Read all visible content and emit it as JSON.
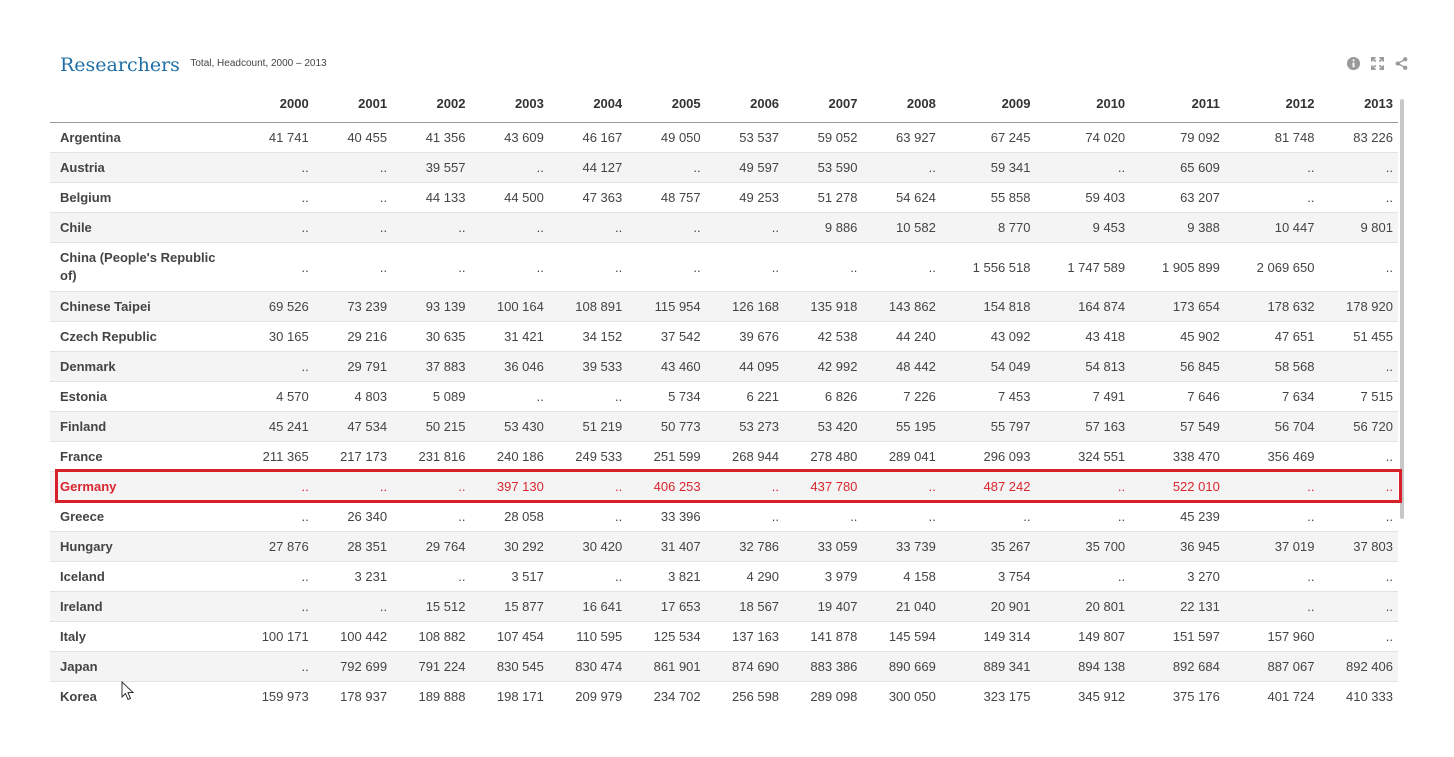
{
  "header": {
    "title": "Researchers",
    "subtitle": "Total, Headcount, 2000 – 2013"
  },
  "tools": [
    {
      "icon": "info-icon"
    },
    {
      "icon": "expand-icon"
    },
    {
      "icon": "share-icon"
    }
  ],
  "colors": {
    "title": "#1f6fa6",
    "highlight": "#d9262e",
    "row_alt": "#f4f4f4"
  },
  "table": {
    "columns": [
      "",
      "2000",
      "2001",
      "2002",
      "2003",
      "2004",
      "2005",
      "2006",
      "2007",
      "2008",
      "2009",
      "2010",
      "2011",
      "2012",
      "2013"
    ],
    "rows": [
      {
        "name": "Argentina",
        "values": [
          "41 741",
          "40 455",
          "41 356",
          "43 609",
          "46 167",
          "49 050",
          "53 537",
          "59 052",
          "63 927",
          "67 245",
          "74 020",
          "79 092",
          "81 748",
          "83 226"
        ]
      },
      {
        "name": "Austria",
        "values": [
          "..",
          "..",
          "39 557",
          "..",
          "44 127",
          "..",
          "49 597",
          "53 590",
          "..",
          "59 341",
          "..",
          "65 609",
          "..",
          ".."
        ]
      },
      {
        "name": "Belgium",
        "values": [
          "..",
          "..",
          "44 133",
          "44 500",
          "47 363",
          "48 757",
          "49 253",
          "51 278",
          "54 624",
          "55 858",
          "59 403",
          "63 207",
          "..",
          ".."
        ]
      },
      {
        "name": "Chile",
        "values": [
          "..",
          "..",
          "..",
          "..",
          "..",
          "..",
          "..",
          "9 886",
          "10 582",
          "8 770",
          "9 453",
          "9 388",
          "10 447",
          "9 801"
        ]
      },
      {
        "name": "China (People's Republic of)",
        "values": [
          "..",
          "..",
          "..",
          "..",
          "..",
          "..",
          "..",
          "..",
          "..",
          "1 556 518",
          "1 747 589",
          "1 905 899",
          "2 069 650",
          ".."
        ]
      },
      {
        "name": "Chinese Taipei",
        "values": [
          "69 526",
          "73 239",
          "93 139",
          "100 164",
          "108 891",
          "115 954",
          "126 168",
          "135 918",
          "143 862",
          "154 818",
          "164 874",
          "173 654",
          "178 632",
          "178 920"
        ]
      },
      {
        "name": "Czech Republic",
        "values": [
          "30 165",
          "29 216",
          "30 635",
          "31 421",
          "34 152",
          "37 542",
          "39 676",
          "42 538",
          "44 240",
          "43 092",
          "43 418",
          "45 902",
          "47 651",
          "51 455"
        ]
      },
      {
        "name": "Denmark",
        "values": [
          "..",
          "29 791",
          "37 883",
          "36 046",
          "39 533",
          "43 460",
          "44 095",
          "42 992",
          "48 442",
          "54 049",
          "54 813",
          "56 845",
          "58 568",
          ".."
        ]
      },
      {
        "name": "Estonia",
        "values": [
          "4 570",
          "4 803",
          "5 089",
          "..",
          "..",
          "5 734",
          "6 221",
          "6 826",
          "7 226",
          "7 453",
          "7 491",
          "7 646",
          "7 634",
          "7 515"
        ]
      },
      {
        "name": "Finland",
        "values": [
          "45 241",
          "47 534",
          "50 215",
          "53 430",
          "51 219",
          "50 773",
          "53 273",
          "53 420",
          "55 195",
          "55 797",
          "57 163",
          "57 549",
          "56 704",
          "56 720"
        ]
      },
      {
        "name": "France",
        "values": [
          "211 365",
          "217 173",
          "231 816",
          "240 186",
          "249 533",
          "251 599",
          "268 944",
          "278 480",
          "289 041",
          "296 093",
          "324 551",
          "338 470",
          "356 469",
          ".."
        ]
      },
      {
        "name": "Germany",
        "values": [
          "..",
          "..",
          "..",
          "397 130",
          "..",
          "406 253",
          "..",
          "437 780",
          "..",
          "487 242",
          "..",
          "522 010",
          "..",
          ".."
        ],
        "highlight": true
      },
      {
        "name": "Greece",
        "values": [
          "..",
          "26 340",
          "..",
          "28 058",
          "..",
          "33 396",
          "..",
          "..",
          "..",
          "..",
          "..",
          "45 239",
          "..",
          ".."
        ]
      },
      {
        "name": "Hungary",
        "values": [
          "27 876",
          "28 351",
          "29 764",
          "30 292",
          "30 420",
          "31 407",
          "32 786",
          "33 059",
          "33 739",
          "35 267",
          "35 700",
          "36 945",
          "37 019",
          "37 803"
        ]
      },
      {
        "name": "Iceland",
        "values": [
          "..",
          "3 231",
          "..",
          "3 517",
          "..",
          "3 821",
          "4 290",
          "3 979",
          "4 158",
          "3 754",
          "..",
          "3 270",
          "..",
          ".."
        ]
      },
      {
        "name": "Ireland",
        "values": [
          "..",
          "..",
          "15 512",
          "15 877",
          "16 641",
          "17 653",
          "18 567",
          "19 407",
          "21 040",
          "20 901",
          "20 801",
          "22 131",
          "..",
          ".."
        ]
      },
      {
        "name": "Italy",
        "values": [
          "100 171",
          "100 442",
          "108 882",
          "107 454",
          "110 595",
          "125 534",
          "137 163",
          "141 878",
          "145 594",
          "149 314",
          "149 807",
          "151 597",
          "157 960",
          ".."
        ]
      },
      {
        "name": "Japan",
        "values": [
          "..",
          "792 699",
          "791 224",
          "830 545",
          "830 474",
          "861 901",
          "874 690",
          "883 386",
          "890 669",
          "889 341",
          "894 138",
          "892 684",
          "887 067",
          "892 406"
        ]
      },
      {
        "name": "Korea",
        "values": [
          "159 973",
          "178 937",
          "189 888",
          "198 171",
          "209 979",
          "234 702",
          "256 598",
          "289 098",
          "300 050",
          "323 175",
          "345 912",
          "375 176",
          "401 724",
          "410 333"
        ]
      }
    ]
  }
}
